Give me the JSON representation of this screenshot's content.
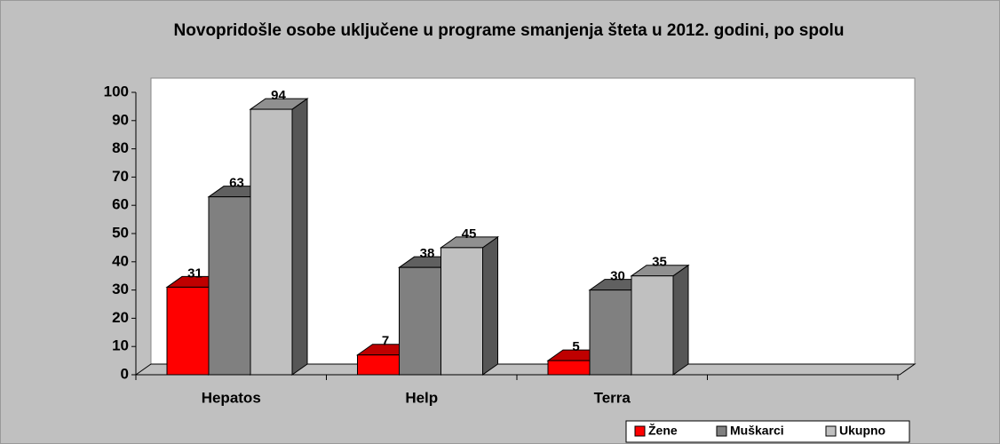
{
  "chart_data": {
    "type": "bar3d",
    "title": "Novopridošle osobe uključene u programe smanjenja šteta u 2012. godini, po spolu",
    "categories": [
      "Hepatos",
      "Help",
      "Terra",
      null
    ],
    "series": [
      {
        "name": "Žene",
        "color": "#ff0000",
        "values": [
          31,
          7,
          5,
          null
        ]
      },
      {
        "name": "Muškarci",
        "color": "#808080",
        "values": [
          63,
          38,
          30,
          null
        ]
      },
      {
        "name": "Ukupno",
        "color": "#c0c0c0",
        "values": [
          94,
          45,
          35,
          null
        ]
      }
    ],
    "ylim": [
      0,
      100
    ],
    "yticks": [
      0,
      10,
      20,
      30,
      40,
      50,
      60,
      70,
      80,
      90,
      100
    ],
    "legend": "bottom-right"
  }
}
